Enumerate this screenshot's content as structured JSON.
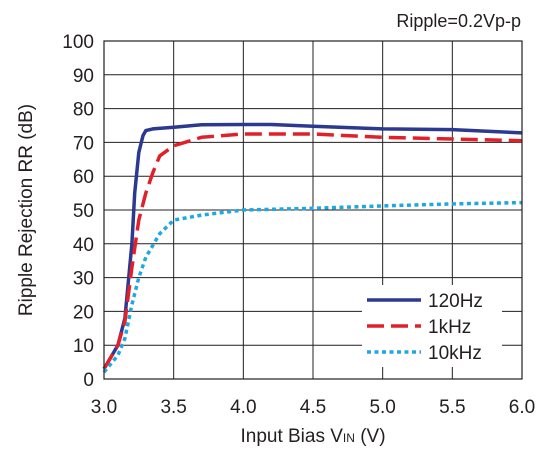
{
  "chart_data": {
    "type": "line",
    "annotation": "Ripple=0.2Vp-p",
    "xlabel_main": "Input Bias V",
    "xlabel_sub": "IN",
    "xlabel_unit": " (V)",
    "ylabel": "Ripple Rejection RR (dB)",
    "xlim": [
      3.0,
      6.0
    ],
    "ylim": [
      0,
      100
    ],
    "x_ticks": [
      "3.0",
      "3.5",
      "4.0",
      "4.5",
      "5.0",
      "5.5",
      "6.0"
    ],
    "y_ticks": [
      "0",
      "10",
      "20",
      "30",
      "40",
      "50",
      "60",
      "70",
      "80",
      "90",
      "100"
    ],
    "grid": true,
    "legend_position": "bottom-right",
    "series": [
      {
        "name": "120Hz",
        "color": "#2b3990",
        "style": "solid",
        "points": [
          [
            3.0,
            3
          ],
          [
            3.1,
            10
          ],
          [
            3.15,
            18
          ],
          [
            3.2,
            40
          ],
          [
            3.22,
            55
          ],
          [
            3.25,
            67
          ],
          [
            3.28,
            72
          ],
          [
            3.3,
            73.5
          ],
          [
            3.35,
            74
          ],
          [
            3.5,
            74.5
          ],
          [
            3.7,
            75.2
          ],
          [
            4.0,
            75.3
          ],
          [
            4.2,
            75.3
          ],
          [
            4.5,
            74.8
          ],
          [
            5.0,
            74
          ],
          [
            5.5,
            73.8
          ],
          [
            6.0,
            72.8
          ]
        ]
      },
      {
        "name": "1kHz",
        "color": "#e2202a",
        "style": "dashed",
        "points": [
          [
            3.0,
            3
          ],
          [
            3.1,
            10
          ],
          [
            3.15,
            17
          ],
          [
            3.2,
            33
          ],
          [
            3.25,
            47
          ],
          [
            3.3,
            55
          ],
          [
            3.35,
            61
          ],
          [
            3.4,
            66
          ],
          [
            3.5,
            69
          ],
          [
            3.7,
            71.5
          ],
          [
            4.0,
            72.5
          ],
          [
            4.5,
            72.5
          ],
          [
            5.0,
            71.5
          ],
          [
            5.5,
            71
          ],
          [
            6.0,
            70.5
          ]
        ]
      },
      {
        "name": "10kHz",
        "color": "#1ea7e1",
        "style": "dotted",
        "points": [
          [
            3.0,
            2
          ],
          [
            3.1,
            7
          ],
          [
            3.15,
            12
          ],
          [
            3.2,
            22
          ],
          [
            3.25,
            30
          ],
          [
            3.3,
            36
          ],
          [
            3.4,
            43
          ],
          [
            3.5,
            47
          ],
          [
            3.7,
            48.5
          ],
          [
            4.0,
            50
          ],
          [
            4.5,
            50.5
          ],
          [
            5.0,
            51.2
          ],
          [
            5.5,
            51.8
          ],
          [
            6.0,
            52.2
          ]
        ]
      }
    ]
  }
}
